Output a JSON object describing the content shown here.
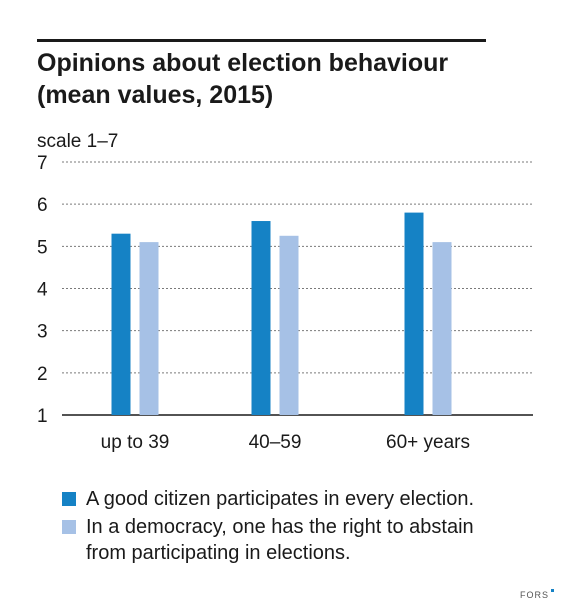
{
  "title_line1": "Opinions about election behaviour",
  "title_line2": "(mean values, 2015)",
  "colors": {
    "series1": "#1582c5",
    "series2": "#a6c1e6",
    "grid": "#7a7a7a",
    "axis": "#1a1a1a"
  },
  "chart_data": {
    "type": "bar",
    "ylabel": "scale 1–7",
    "ylim": [
      1,
      7
    ],
    "yticks": [
      "7",
      "6",
      "5",
      "4",
      "3",
      "2",
      "1"
    ],
    "ytick_values": [
      7,
      6,
      5,
      4,
      3,
      2,
      1
    ],
    "grid": "dashed horizontal",
    "categories": [
      "up to 39",
      "40–59",
      "60+ years"
    ],
    "series": [
      {
        "name": "A good citizen participates in every election.",
        "values": [
          5.3,
          5.6,
          5.8
        ]
      },
      {
        "name": "In a democracy, one has the right to abstain from participating in elections.",
        "values": [
          5.1,
          5.25,
          5.1
        ]
      }
    ],
    "legend_placement": "bottom"
  },
  "legend": [
    {
      "lines": [
        "A good citizen participates in every election."
      ]
    },
    {
      "lines": [
        "In a democracy, one has the right to abstain",
        "from participating in elections."
      ]
    }
  ],
  "logo_text": "FORS"
}
